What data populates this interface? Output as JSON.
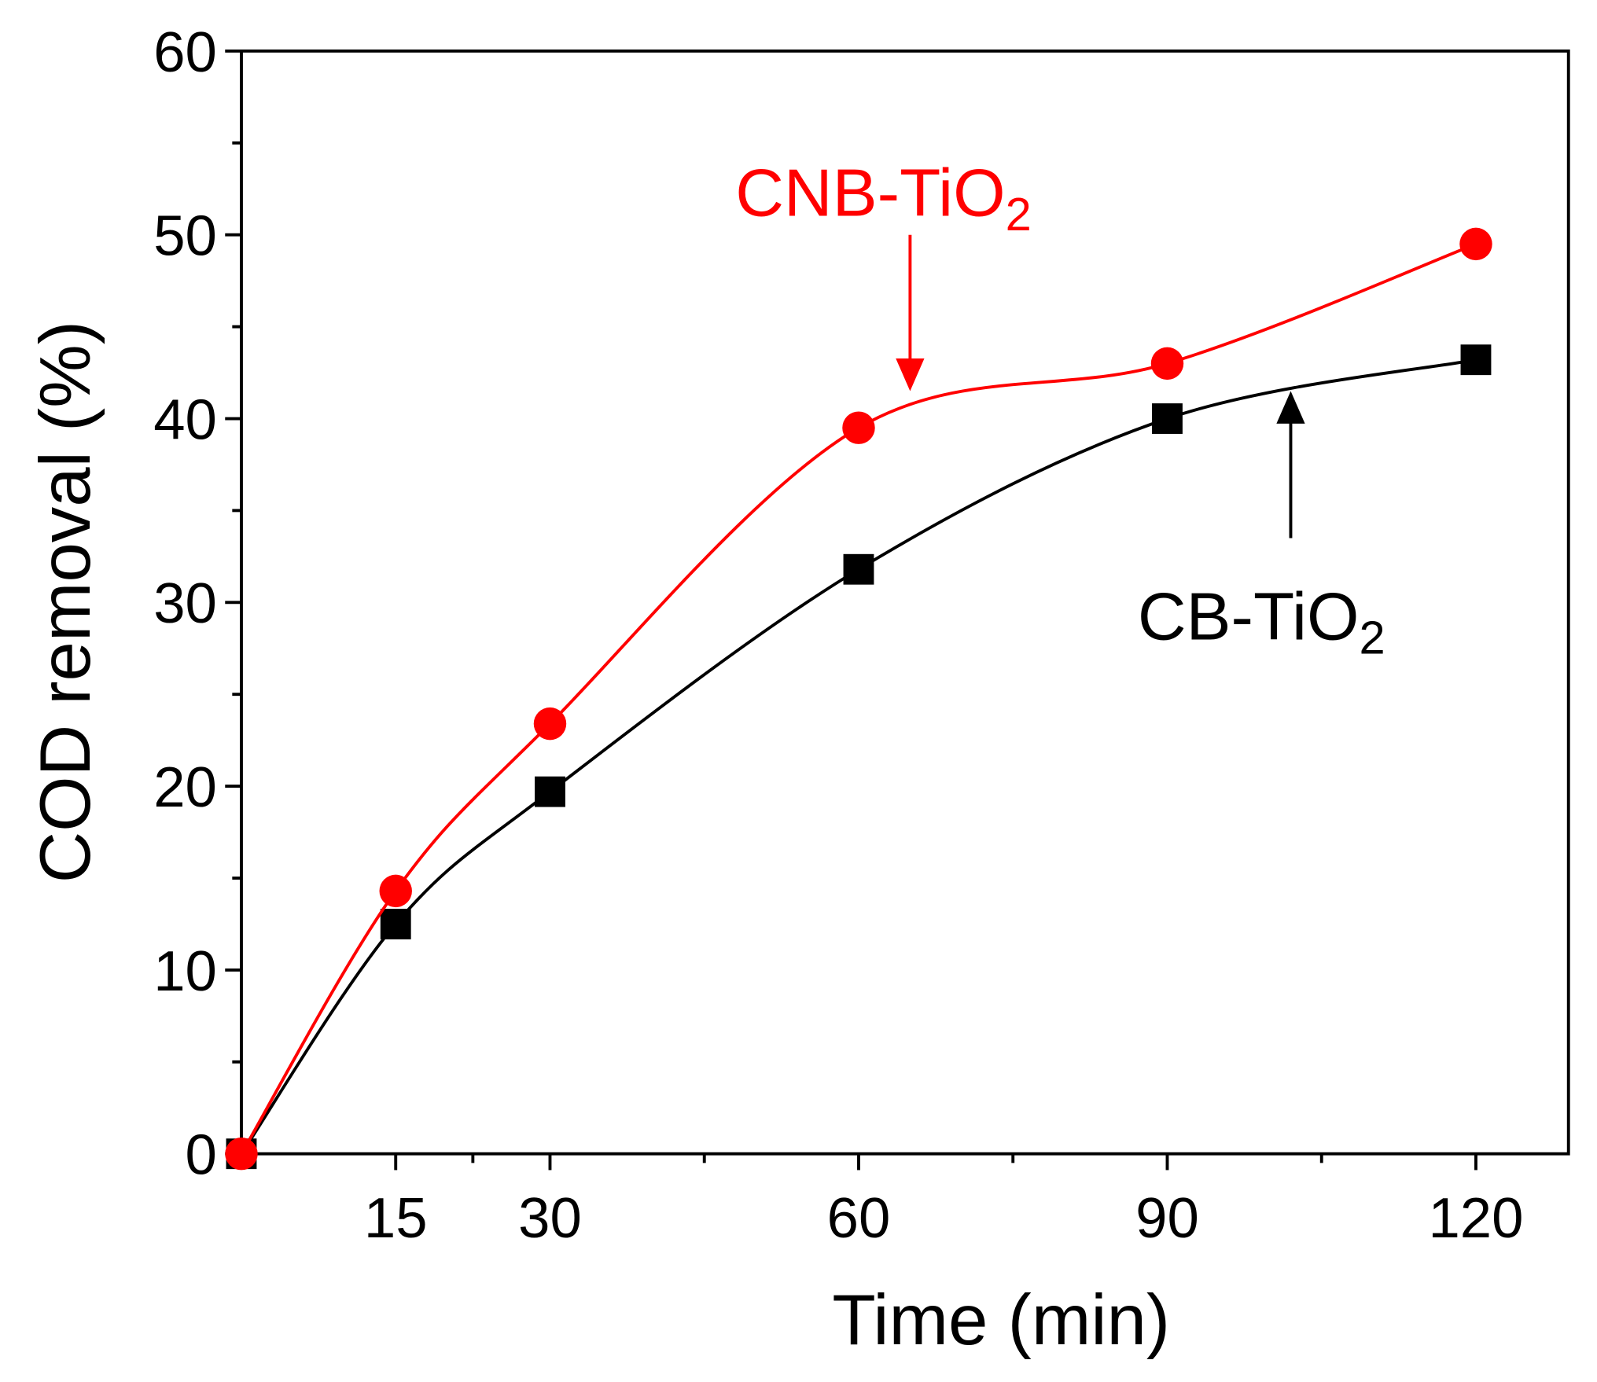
{
  "chart_data": {
    "type": "line",
    "title": "",
    "xlabel": "Time (min)",
    "ylabel": "COD removal (%)",
    "xlim": [
      0,
      129
    ],
    "ylim": [
      0,
      60
    ],
    "x_ticks": [
      15,
      30,
      60,
      90,
      120
    ],
    "x_minor_ticks": [
      22.5,
      45,
      75,
      105
    ],
    "y_ticks": [
      0,
      10,
      20,
      30,
      40,
      50,
      60
    ],
    "y_minor_ticks": [
      5,
      15,
      25,
      35,
      45,
      55
    ],
    "grid": false,
    "x": [
      0,
      15,
      30,
      60,
      90,
      120
    ],
    "series": [
      {
        "name": "CNB-TiO",
        "subscript": "2",
        "color": "#ff0000",
        "marker": "circle",
        "values": [
          0,
          14.3,
          23.4,
          39.5,
          43.0,
          49.5
        ]
      },
      {
        "name": "CB-TiO",
        "subscript": "2",
        "color": "#000000",
        "marker": "square",
        "values": [
          0,
          12.5,
          19.7,
          31.8,
          40.0,
          43.2
        ]
      }
    ],
    "annotations": [
      {
        "series": 0,
        "arrow": "down",
        "arrow_from": [
          65,
          50
        ],
        "arrow_to": [
          65,
          41.5
        ]
      },
      {
        "series": 1,
        "arrow": "up",
        "arrow_from": [
          102,
          33.5
        ],
        "arrow_to": [
          102,
          41.5
        ]
      }
    ]
  }
}
